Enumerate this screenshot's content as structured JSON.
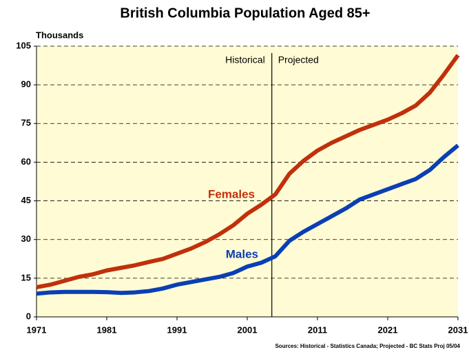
{
  "chart_data": {
    "type": "line",
    "title": "British Columbia Population Aged 85+",
    "y_label": "Thousands",
    "source": "Sources:  Historical - Statistics Canada; Projected - BC Stats Proj 05/04",
    "annotations": [
      "Historical",
      "Projected"
    ],
    "divider_x": 2004.5,
    "x": [
      1971,
      1973,
      1975,
      1977,
      1979,
      1981,
      1983,
      1985,
      1987,
      1989,
      1991,
      1993,
      1995,
      1997,
      1999,
      2001,
      2003,
      2005,
      2007,
      2009,
      2011,
      2013,
      2015,
      2017,
      2019,
      2021,
      2023,
      2025,
      2027,
      2029,
      2031
    ],
    "series": [
      {
        "name": "Females",
        "color": "#c0300c",
        "values": [
          11.5,
          12.5,
          14,
          15.5,
          16.5,
          18,
          19,
          20,
          21.3,
          22.5,
          24.5,
          26.5,
          29,
          32,
          35.5,
          40,
          43.5,
          47.5,
          55.5,
          60.5,
          64.5,
          67.5,
          70,
          72.5,
          74.5,
          76.5,
          79,
          82,
          87,
          94,
          101.5
        ]
      },
      {
        "name": "Males",
        "color": "#0a3fb4",
        "values": [
          9,
          9.5,
          9.7,
          9.7,
          9.7,
          9.6,
          9.3,
          9.5,
          10,
          11,
          12.5,
          13.5,
          14.5,
          15.5,
          17,
          19.5,
          21,
          23.5,
          29.5,
          33,
          36,
          39,
          42,
          45.5,
          47.5,
          49.5,
          51.5,
          53.5,
          57,
          62,
          66.5
        ]
      }
    ],
    "xlim": [
      1971,
      2031
    ],
    "xticks": [
      1971,
      1981,
      1991,
      2001,
      2011,
      2021,
      2031
    ],
    "ylim": [
      0,
      105
    ],
    "yticks": [
      0,
      15,
      30,
      45,
      60,
      75,
      90,
      105
    ],
    "grid": true,
    "background": "#fffbd4"
  }
}
